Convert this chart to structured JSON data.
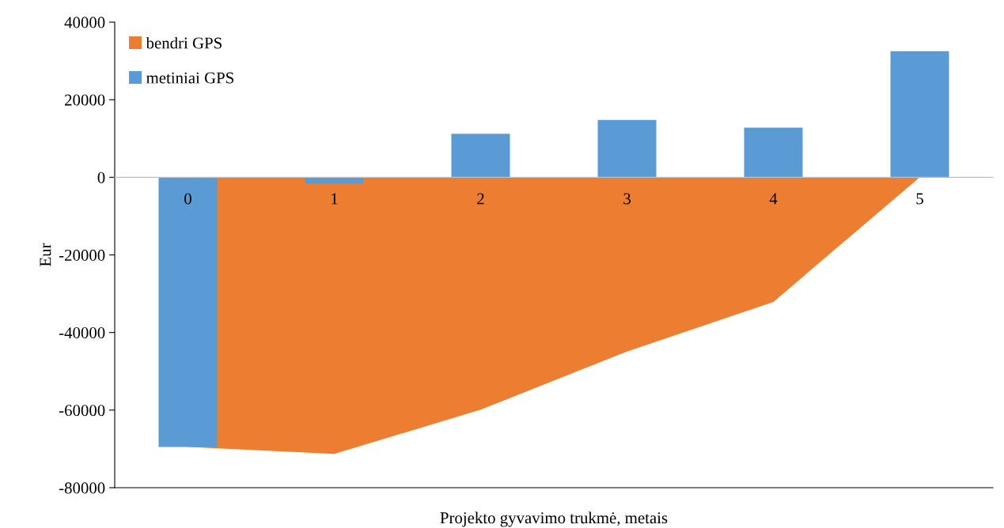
{
  "chart_data": {
    "type": "bar",
    "xlabel": "Projekto gyvavimo trukmė, metais",
    "ylabel": "Eur",
    "categories": [
      "0",
      "1",
      "2",
      "3",
      "4",
      "5"
    ],
    "series": [
      {
        "name": "bendri GPS",
        "type": "area",
        "color": "#ed7d31",
        "values": [
          -69500,
          -71300,
          -59900,
          -44900,
          -32100,
          0
        ]
      },
      {
        "name": "metiniai GPS",
        "color": "#5b9bd5",
        "values": [
          -69500,
          -1600,
          11200,
          14800,
          12800,
          32500
        ]
      }
    ],
    "ylim": [
      -80000,
      40000
    ],
    "yticks": [
      -80000,
      -60000,
      -40000,
      -20000,
      0,
      20000,
      40000
    ],
    "grid": false,
    "legend": "top left"
  }
}
